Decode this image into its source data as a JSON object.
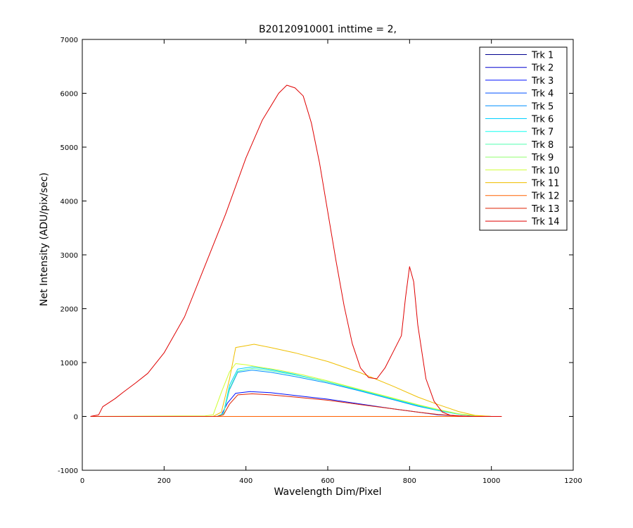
{
  "chart_data": {
    "type": "line",
    "title": "B20120910001 inttime = 2,",
    "xlabel": "Wavelength Dim/Pixel",
    "ylabel": "Net Intensity (ADU/pix/sec)",
    "xlim": [
      0,
      1200
    ],
    "ylim": [
      -1000,
      7000
    ],
    "xticks": [
      0,
      200,
      400,
      600,
      800,
      1000,
      1200
    ],
    "yticks": [
      -1000,
      0,
      1000,
      2000,
      3000,
      4000,
      5000,
      6000,
      7000
    ],
    "grid": false,
    "legend_position": "top-right",
    "series": [
      {
        "name": "Trk 1",
        "color": "#00008F",
        "x": [
          20,
          330,
          1025
        ],
        "y": [
          0,
          0,
          0
        ]
      },
      {
        "name": "Trk 2",
        "color": "#0000CF",
        "x": [
          20,
          330,
          1025
        ],
        "y": [
          0,
          0,
          0
        ]
      },
      {
        "name": "Trk 3",
        "color": "#0010FF",
        "x": [
          20,
          330,
          340,
          355,
          375,
          410,
          460,
          520,
          600,
          680,
          760,
          820,
          870,
          920,
          960,
          1000,
          1025
        ],
        "y": [
          0,
          0,
          30,
          250,
          430,
          460,
          440,
          390,
          320,
          230,
          140,
          80,
          30,
          10,
          0,
          0,
          0
        ]
      },
      {
        "name": "Trk 4",
        "color": "#0050FF",
        "x": [
          20,
          330,
          1025
        ],
        "y": [
          0,
          0,
          0
        ]
      },
      {
        "name": "Trk 5",
        "color": "#0090FF",
        "x": [
          20,
          330,
          345,
          360,
          380,
          415,
          460,
          520,
          600,
          680,
          760,
          820,
          870,
          920,
          960,
          1000,
          1025
        ],
        "y": [
          0,
          0,
          50,
          500,
          820,
          860,
          820,
          740,
          620,
          470,
          310,
          190,
          110,
          40,
          10,
          0,
          0
        ]
      },
      {
        "name": "Trk 6",
        "color": "#00D0FF",
        "x": [
          20,
          330,
          345,
          360,
          380,
          415,
          460,
          520,
          600,
          680,
          760,
          820,
          870,
          920,
          960,
          1000,
          1025
        ],
        "y": [
          0,
          0,
          60,
          580,
          880,
          920,
          870,
          780,
          640,
          480,
          320,
          200,
          110,
          40,
          10,
          0,
          0
        ]
      },
      {
        "name": "Trk 7",
        "color": "#10FFEF",
        "x": [
          20,
          330,
          1025
        ],
        "y": [
          0,
          0,
          0
        ]
      },
      {
        "name": "Trk 8",
        "color": "#50FFAF",
        "x": [
          20,
          330,
          345,
          360,
          380,
          415,
          460,
          520,
          600,
          680,
          760,
          820,
          870,
          920,
          960,
          1000,
          1025
        ],
        "y": [
          0,
          0,
          50,
          520,
          840,
          890,
          850,
          770,
          640,
          490,
          330,
          210,
          120,
          45,
          12,
          0,
          0
        ]
      },
      {
        "name": "Trk 9",
        "color": "#90FF6F",
        "x": [
          20,
          1025
        ],
        "y": [
          0,
          0
        ]
      },
      {
        "name": "Trk 10",
        "color": "#CFFF30",
        "x": [
          20,
          300,
          320,
          340,
          360,
          375,
          400,
          430,
          480,
          540,
          600,
          680,
          760,
          820,
          870,
          920,
          960,
          1000,
          1025
        ],
        "y": [
          0,
          10,
          30,
          450,
          830,
          980,
          960,
          920,
          860,
          770,
          660,
          500,
          340,
          220,
          130,
          50,
          15,
          0,
          0
        ]
      },
      {
        "name": "Trk 11",
        "color": "#EFBF00",
        "x": [
          20,
          320,
          340,
          360,
          375,
          390,
          420,
          460,
          520,
          600,
          680,
          760,
          820,
          870,
          920,
          960,
          1000,
          1025
        ],
        "y": [
          0,
          0,
          80,
          700,
          1280,
          1300,
          1340,
          1280,
          1180,
          1020,
          810,
          560,
          360,
          220,
          90,
          20,
          0,
          0
        ]
      },
      {
        "name": "Trk 12",
        "color": "#FF6000",
        "x": [
          20,
          1025
        ],
        "y": [
          0,
          0
        ]
      },
      {
        "name": "Trk 13",
        "color": "#DF2000",
        "x": [
          20,
          330,
          345,
          360,
          380,
          415,
          460,
          520,
          600,
          680,
          760,
          820,
          870,
          920,
          960,
          1000,
          1025
        ],
        "y": [
          0,
          0,
          30,
          230,
          400,
          420,
          400,
          360,
          300,
          220,
          140,
          80,
          35,
          12,
          0,
          0,
          0
        ]
      },
      {
        "name": "Trk 14",
        "color": "#DF0000",
        "x": [
          20,
          40,
          50,
          60,
          80,
          100,
          130,
          160,
          200,
          250,
          300,
          350,
          400,
          440,
          480,
          500,
          520,
          540,
          560,
          580,
          600,
          620,
          640,
          660,
          680,
          700,
          720,
          740,
          760,
          780,
          790,
          800,
          810,
          820,
          840,
          860,
          880,
          900,
          920,
          940,
          960,
          1025
        ],
        "y": [
          0,
          30,
          180,
          230,
          330,
          450,
          620,
          800,
          1180,
          1850,
          2800,
          3750,
          4800,
          5500,
          6000,
          6150,
          6100,
          5950,
          5450,
          4700,
          3800,
          2900,
          2050,
          1350,
          900,
          720,
          700,
          900,
          1200,
          1500,
          2200,
          2780,
          2500,
          1700,
          700,
          280,
          80,
          20,
          5,
          0,
          0,
          0
        ]
      }
    ]
  }
}
